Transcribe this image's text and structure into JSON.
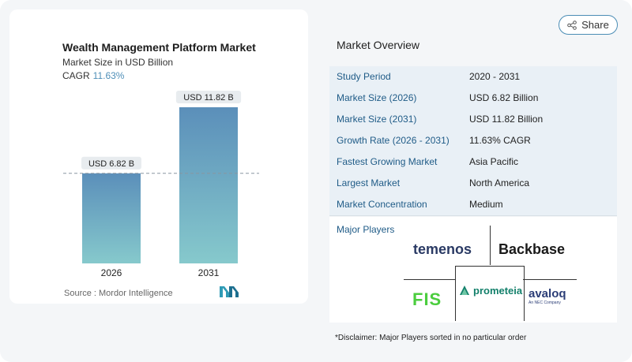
{
  "share": {
    "label": "Share",
    "icon": "share-icon"
  },
  "chart_data": {
    "type": "bar",
    "title": "Wealth Management Platform Market",
    "subtitle": "Market Size in USD Billion",
    "cagr_label": "CAGR",
    "cagr_value": "11.63%",
    "categories": [
      "2026",
      "2031"
    ],
    "values": [
      6.82,
      11.82
    ],
    "data_labels": [
      "USD 6.82 B",
      "USD 11.82 B"
    ],
    "ylim": [
      0,
      11.82
    ],
    "reference_line": 6.82,
    "bar_gradient": [
      "#5b8fba",
      "#86c9cc"
    ],
    "grid": false
  },
  "source": "Source :  Mordor Intelligence",
  "overview": {
    "title": "Market Overview",
    "rows": [
      {
        "label": "Study Period",
        "value": "2020 - 2031"
      },
      {
        "label": "Market Size (2026)",
        "value": "USD 6.82 Billion"
      },
      {
        "label": "Market Size (2031)",
        "value": "USD 11.82 Billion"
      },
      {
        "label": "Growth Rate (2026 - 2031)",
        "value": "11.63% CAGR"
      },
      {
        "label": "Fastest Growing Market",
        "value": "Asia Pacific"
      },
      {
        "label": "Largest Market",
        "value": "North America"
      },
      {
        "label": "Market Concentration",
        "value": "Medium"
      }
    ]
  },
  "players": {
    "label": "Major Players",
    "logos": {
      "temenos": "temenos",
      "backbase": "Backbase",
      "fis": "FIS",
      "prometeia": "prometeia",
      "avaloq": "avaloq",
      "avaloq_sub": "An NEC Company"
    }
  },
  "disclaimer": "*Disclaimer: Major Players sorted in no particular order",
  "colors": {
    "accent": "#4b8db5",
    "label_blue": "#1f5b87",
    "row_shade": "#e9f0f6"
  }
}
